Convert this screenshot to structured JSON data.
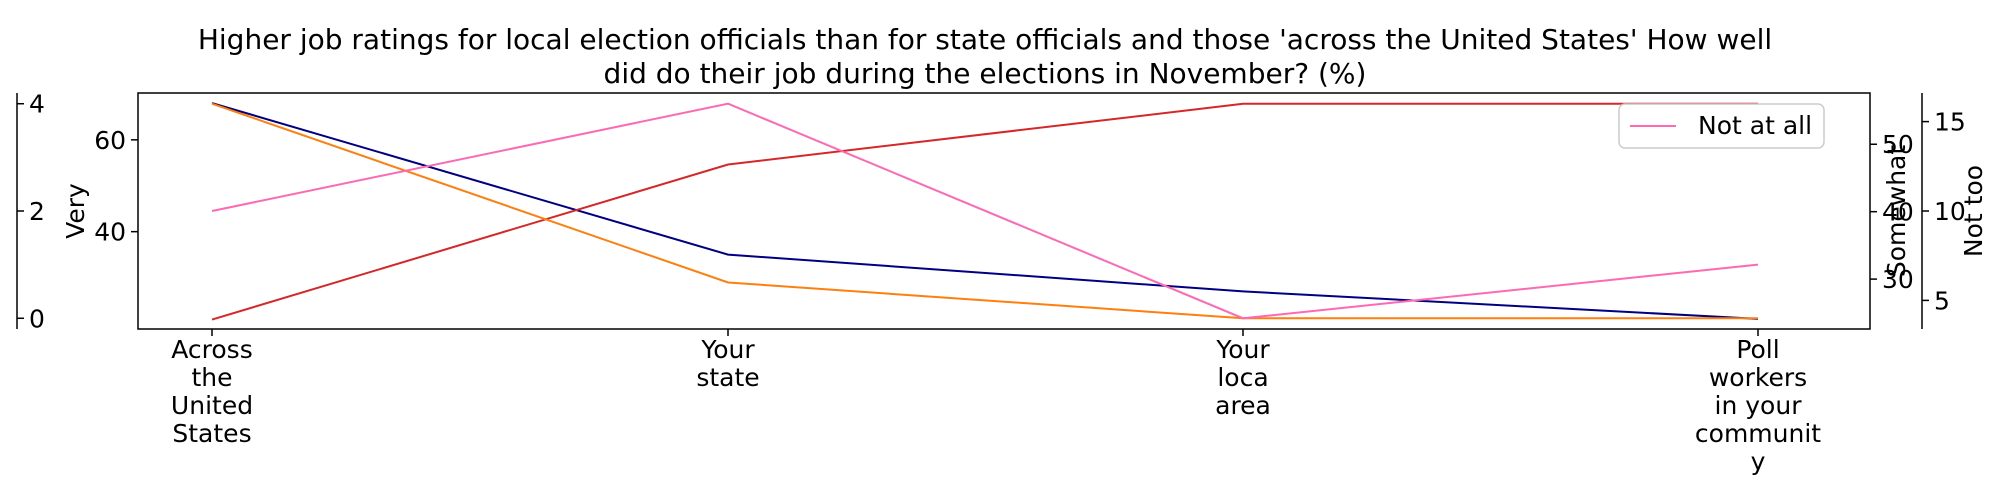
{
  "chart_data": {
    "type": "line",
    "title": "Higher job ratings for local election officials than for state officials and those 'across the United States' How well did do their job during the elections in November? (%)",
    "title_lines": [
      "Higher job ratings for local election officials than for state officials and those 'across the United States' How well",
      "did do their job during the elections in November? (%)"
    ],
    "categories": [
      "Across the United States",
      "Your state",
      "Your loca area",
      "Poll workers in your community"
    ],
    "category_label_lines": [
      [
        "Across",
        "the",
        "United",
        "States"
      ],
      [
        "Your",
        "state"
      ],
      [
        "Your",
        "loca",
        "area"
      ],
      [
        "Poll",
        "workers",
        "in your",
        "communit",
        "y"
      ]
    ],
    "series": [
      {
        "name": "Very",
        "axis": "very",
        "color": "#000080",
        "values": [
          68,
          35,
          27,
          21
        ]
      },
      {
        "name": "Somewhat",
        "axis": "somewhat",
        "color": "#d62728",
        "values": [
          24,
          47,
          56,
          56
        ]
      },
      {
        "name": "Not too",
        "axis": "nottoo",
        "color": "#ff7f0e",
        "values": [
          16,
          6,
          4,
          4
        ]
      },
      {
        "name": "Not at all",
        "axis": "notatall",
        "color": "#ff69b4",
        "values": [
          2,
          4,
          0,
          1
        ]
      }
    ],
    "axes": {
      "very": {
        "label": "Very",
        "ticks": [
          40,
          60
        ],
        "range": [
          18.8,
          70.2
        ]
      },
      "notatall": {
        "label": "",
        "ticks": [
          0,
          2,
          4
        ],
        "range": [
          -0.2,
          4.2
        ]
      },
      "somewhat": {
        "label": "Somewhat",
        "ticks": [
          30,
          40,
          50
        ],
        "range": [
          22.6,
          57.6
        ]
      },
      "nottoo": {
        "label": "Not too",
        "ticks": [
          5,
          10,
          15
        ],
        "range": [
          3.4,
          16.6
        ]
      }
    },
    "legend": {
      "entries": [
        "Not at all"
      ],
      "position": "upper right"
    },
    "grid": false
  }
}
